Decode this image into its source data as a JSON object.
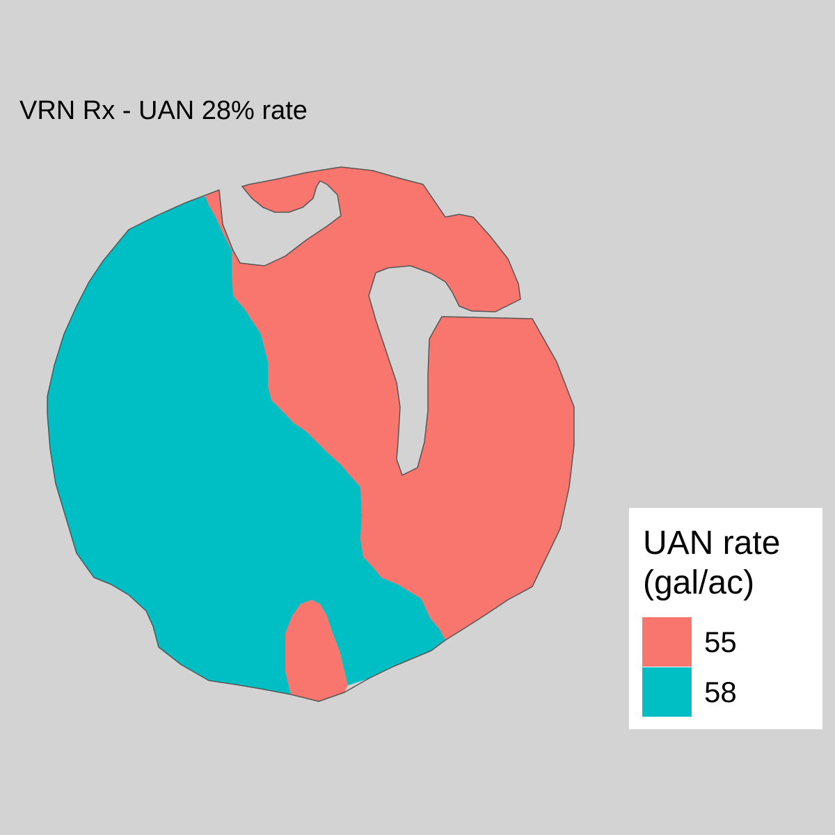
{
  "map": {
    "title": "VRN Rx - UAN 28% rate",
    "zones": [
      {
        "name": "UAN 55 gal/ac zone",
        "rate": 55,
        "color": "#f8766d"
      },
      {
        "name": "UAN 58 gal/ac zone",
        "rate": 58,
        "color": "#00bfc4"
      }
    ],
    "boundary_color": "#555555",
    "background_color": "#d3d3d3"
  },
  "legend": {
    "title_line1": "UAN rate",
    "title_line2": "(gal/ac)",
    "items": [
      {
        "label": "55",
        "color": "#f8766d"
      },
      {
        "label": "58",
        "color": "#00bfc4"
      }
    ]
  }
}
